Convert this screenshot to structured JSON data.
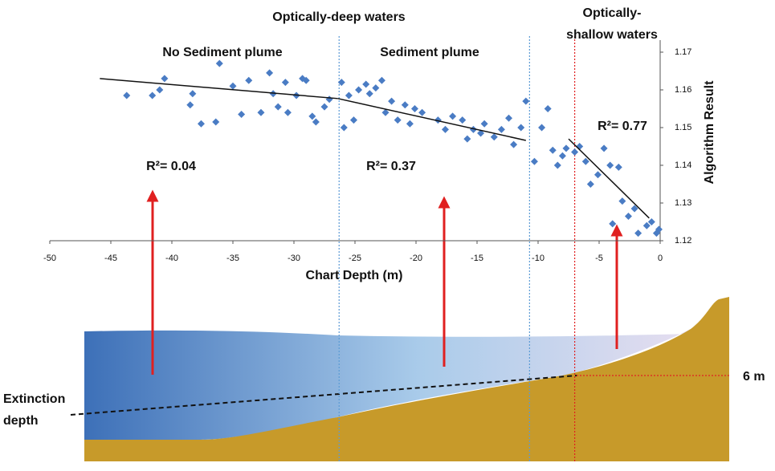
{
  "chart_data": {
    "type": "scatter",
    "x_label": "Chart Depth (m)",
    "y_label": "Algorithm Result",
    "xlim": [
      -50,
      0
    ],
    "ylim": [
      1.12,
      1.17
    ],
    "xticks": [
      -50,
      -45,
      -40,
      -35,
      -30,
      -25,
      -20,
      -15,
      -10,
      -5,
      0
    ],
    "yticks": [
      1.12,
      1.13,
      1.14,
      1.15,
      1.16,
      1.17
    ],
    "color": "#4a7cc4",
    "x": [
      -43.7,
      -41.6,
      -41.0,
      -40.6,
      -38.3,
      -37.6,
      -38.5,
      -36.4,
      -36.1,
      -35.0,
      -34.3,
      -33.7,
      -32.7,
      -32.0,
      -31.7,
      -31.3,
      -30.7,
      -30.5,
      -29.8,
      -29.3,
      -29.0,
      -28.5,
      -28.2,
      -27.5,
      -27.1,
      -26.1,
      -25.9,
      -25.5,
      -25.1,
      -24.7,
      -24.1,
      -23.8,
      -23.3,
      -22.8,
      -22.5,
      -22.0,
      -21.5,
      -20.9,
      -20.5,
      -20.1,
      -19.5,
      -18.2,
      -17.6,
      -17.0,
      -16.2,
      -15.8,
      -15.3,
      -14.7,
      -14.4,
      -13.6,
      -13.0,
      -12.4,
      -12.0,
      -11.4,
      -11.0,
      -10.3,
      -9.7,
      -9.2,
      -8.8,
      -8.4,
      -8.0,
      -7.7,
      -7.0,
      -6.6,
      -6.1,
      -5.7,
      -5.1,
      -4.6,
      -4.1,
      -3.9,
      -3.4,
      -3.1,
      -2.6,
      -2.1,
      -1.8,
      -1.1,
      -0.7,
      -0.3,
      -0.1
    ],
    "values": [
      1.1585,
      1.1585,
      1.16,
      1.163,
      1.159,
      1.151,
      1.156,
      1.1515,
      1.167,
      1.161,
      1.1535,
      1.1625,
      1.154,
      1.1645,
      1.159,
      1.1555,
      1.162,
      1.154,
      1.1585,
      1.163,
      1.1625,
      1.153,
      1.1515,
      1.1555,
      1.1575,
      1.162,
      1.15,
      1.1585,
      1.152,
      1.16,
      1.1615,
      1.159,
      1.1605,
      1.1625,
      1.154,
      1.157,
      1.152,
      1.156,
      1.151,
      1.155,
      1.154,
      1.152,
      1.1495,
      1.153,
      1.152,
      1.147,
      1.1495,
      1.1485,
      1.151,
      1.1475,
      1.1495,
      1.1525,
      1.1455,
      1.15,
      1.157,
      1.141,
      1.15,
      1.155,
      1.144,
      1.14,
      1.1425,
      1.1445,
      1.1435,
      1.145,
      1.141,
      1.135,
      1.1375,
      1.1445,
      1.14,
      1.1245,
      1.1395,
      1.1305,
      1.1265,
      1.1285,
      1.122,
      1.124,
      1.125,
      1.122,
      1.123
    ],
    "trendlines": [
      {
        "x": [
          -45.9,
          -26.4
        ],
        "values": [
          1.163,
          1.1577
        ]
      },
      {
        "x": [
          -26.4,
          -11.0
        ],
        "values": [
          1.1577,
          1.1466
        ]
      },
      {
        "x": [
          -7.5,
          -0.9
        ],
        "values": [
          1.147,
          1.126
        ]
      }
    ],
    "dividers": [
      {
        "x": -26.3,
        "color": "#5b9bd5"
      },
      {
        "x": -10.7,
        "color": "#5b9bd5"
      },
      {
        "x": -7.0,
        "color": "#e02020"
      }
    ],
    "annotations": [
      "Optically-deep waters",
      "No Sediment plume",
      "Sediment plume",
      "Optically-",
      "shallow waters",
      "R²= 0.04",
      "R²= 0.37",
      "R²= 0.77"
    ]
  },
  "diagram": {
    "extinction_label": [
      "Extinction",
      "depth"
    ],
    "depth_label": "6 m"
  }
}
